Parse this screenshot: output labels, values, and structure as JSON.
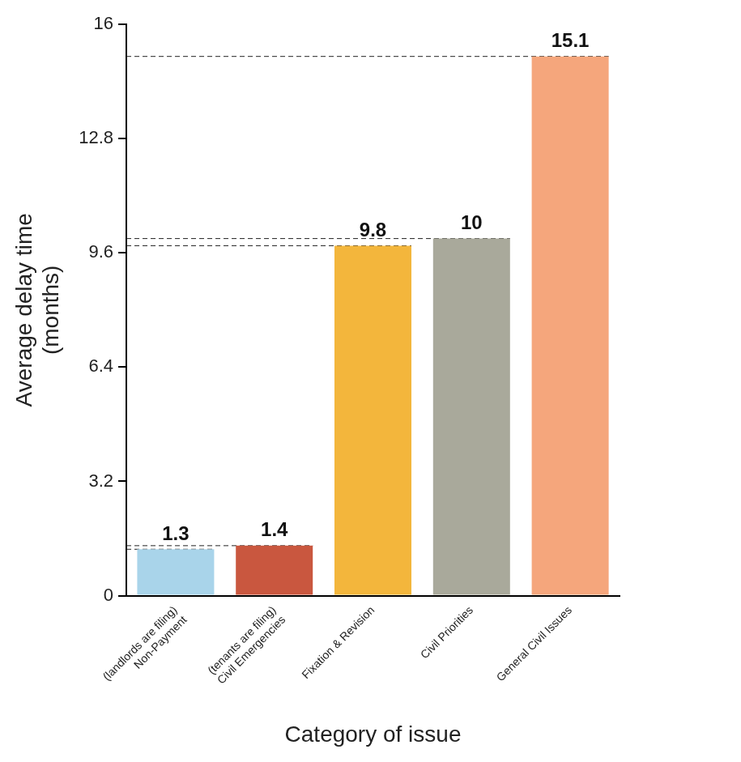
{
  "chart_data": {
    "type": "bar",
    "x_label": "Category of issue",
    "y_label": "Average delay time (months)",
    "categories": [
      "(landlords are filing) Non-Payment",
      "(tenants are filing) Civil Emergencies",
      "Fixation & Revision",
      "Civil Priorities",
      "General Civil Issues"
    ],
    "values": [
      1.3,
      1.4,
      9.8,
      10,
      15.1
    ],
    "colors": [
      "#a9d4ea",
      "#c9573f",
      "#f3b63c",
      "#a9a99b",
      "#f5a67c"
    ],
    "ylim": [
      0,
      16
    ],
    "yticks": [
      0,
      3.2,
      6.4,
      9.6,
      12.8,
      16
    ],
    "grid": false,
    "data_labels": true
  }
}
